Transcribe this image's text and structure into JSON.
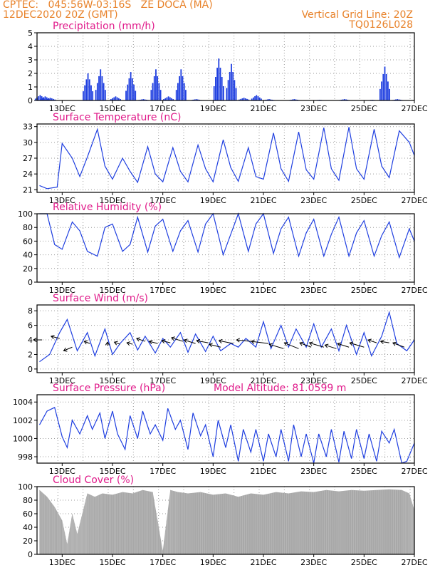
{
  "header": {
    "line1": "CPTEC:   045:56W-03:16S   ZE DOCA (MA)",
    "line2": "12DEC2020 20Z (GMT)",
    "right1": "Vertical Grid Line: 20Z",
    "right2": "TQ0126L028"
  },
  "colors": {
    "series": "#1f3fe0",
    "title": "#e01a8a",
    "header": "#e8822a",
    "cloud": "#a8a8a8",
    "grid": "#9a9a9a"
  },
  "chart_data": [
    {
      "type": "bar",
      "title": "Precipitation (mm/h)",
      "x_tick_labels": [
        "13DEC",
        "15DEC",
        "17DEC",
        "19DEC",
        "21DEC",
        "23DEC",
        "25DEC",
        "27DEC"
      ],
      "x_range_days": [
        12.83,
        27
      ],
      "ylim": [
        0,
        5
      ],
      "y_ticks": [
        0,
        1,
        2,
        3,
        4,
        5
      ],
      "x": [
        12.1,
        12.3,
        12.5,
        14.0,
        14.5,
        15.1,
        15.7,
        16.2,
        16.7,
        17.2,
        17.7,
        18.3,
        19.2,
        19.7,
        20.2,
        20.7,
        21.2,
        22.2,
        23.2,
        24.2,
        25.3,
        25.8,
        26.3
      ],
      "values": [
        0.4,
        0.3,
        0.2,
        2.0,
        2.3,
        0.3,
        2.1,
        0.1,
        2.3,
        0.3,
        2.3,
        0.1,
        3.1,
        2.7,
        0.2,
        0.4,
        0.1,
        0.1,
        0.05,
        0.1,
        0.05,
        2.5,
        0.1
      ]
    },
    {
      "type": "line",
      "title": "Surface Temperature (nC)",
      "x_tick_labels": [
        "13DEC",
        "15DEC",
        "17DEC",
        "19DEC",
        "21DEC",
        "23DEC",
        "25DEC",
        "27DEC"
      ],
      "ylim": [
        20.5,
        33.5
      ],
      "y_ticks": [
        21,
        24,
        27,
        30,
        33
      ],
      "x": [
        12.1,
        12.4,
        12.8,
        13.0,
        13.4,
        13.7,
        14.0,
        14.4,
        14.7,
        15.0,
        15.4,
        15.7,
        16.0,
        16.4,
        16.7,
        17.0,
        17.4,
        17.7,
        18.0,
        18.4,
        18.7,
        19.0,
        19.4,
        19.7,
        20.0,
        20.4,
        20.7,
        21.0,
        21.4,
        21.7,
        22.0,
        22.4,
        22.7,
        23.0,
        23.4,
        23.7,
        24.0,
        24.4,
        24.7,
        25.0,
        25.4,
        25.7,
        26.0,
        26.4,
        26.8,
        27.0
      ],
      "values": [
        21.8,
        21.2,
        21.5,
        29.8,
        27.0,
        23.5,
        27.2,
        32.5,
        25.5,
        23.0,
        27.0,
        24.5,
        22.4,
        29.2,
        24.0,
        22.5,
        29.0,
        24.5,
        22.5,
        29.5,
        25.0,
        22.5,
        30.5,
        25.2,
        22.6,
        29.0,
        23.5,
        23.0,
        31.8,
        25.0,
        22.6,
        32.0,
        24.8,
        23.0,
        32.8,
        25.0,
        22.8,
        32.9,
        25.0,
        23.0,
        32.5,
        25.5,
        23.3,
        32.2,
        30.0,
        27.5
      ]
    },
    {
      "type": "line",
      "title": "Relative Humidity (%)",
      "x_tick_labels": [
        "13DEC",
        "15DEC",
        "17DEC",
        "19DEC",
        "21DEC",
        "23DEC",
        "25DEC",
        "27DEC"
      ],
      "ylim": [
        0,
        100
      ],
      "y_ticks": [
        0,
        20,
        40,
        60,
        80,
        100
      ],
      "x": [
        12.1,
        12.4,
        12.7,
        13.0,
        13.4,
        13.7,
        14.0,
        14.4,
        14.7,
        15.0,
        15.4,
        15.7,
        16.0,
        16.4,
        16.7,
        17.0,
        17.4,
        17.7,
        18.0,
        18.4,
        18.7,
        19.0,
        19.4,
        19.7,
        20.0,
        20.4,
        20.7,
        21.0,
        21.4,
        21.7,
        22.0,
        22.4,
        22.7,
        23.0,
        23.4,
        23.7,
        24.0,
        24.4,
        24.7,
        25.0,
        25.4,
        25.7,
        26.0,
        26.4,
        26.8,
        27.0
      ],
      "values": [
        100,
        100,
        55,
        48,
        88,
        75,
        45,
        38,
        80,
        85,
        45,
        55,
        95,
        44,
        82,
        92,
        45,
        75,
        90,
        44,
        85,
        100,
        40,
        70,
        100,
        45,
        85,
        100,
        42,
        78,
        95,
        38,
        72,
        92,
        38,
        70,
        95,
        38,
        72,
        90,
        38,
        68,
        88,
        36,
        78,
        60
      ]
    },
    {
      "type": "line",
      "title": "Surface Wind (m/s)",
      "x_tick_labels": [
        "13DEC",
        "15DEC",
        "17DEC",
        "19DEC",
        "21DEC",
        "23DEC",
        "25DEC",
        "27DEC"
      ],
      "ylim": [
        -0.5,
        8.8
      ],
      "y_ticks": [
        0,
        2,
        4,
        6,
        8
      ],
      "x": [
        12.1,
        12.5,
        12.9,
        13.2,
        13.6,
        14.0,
        14.3,
        14.7,
        15.0,
        15.3,
        15.7,
        16.0,
        16.3,
        16.7,
        17.0,
        17.3,
        17.7,
        18.0,
        18.3,
        18.7,
        19.0,
        19.3,
        19.7,
        20.0,
        20.3,
        20.7,
        21.0,
        21.3,
        21.7,
        22.0,
        22.3,
        22.7,
        23.0,
        23.3,
        23.7,
        24.0,
        24.3,
        24.7,
        25.0,
        25.3,
        25.7,
        26.0,
        26.3,
        26.7,
        27.0
      ],
      "values": [
        1.0,
        2.0,
        5.0,
        6.8,
        2.5,
        5.0,
        1.8,
        5.5,
        2.0,
        3.5,
        5.0,
        2.6,
        4.5,
        2.2,
        4.2,
        3.0,
        5.0,
        2.3,
        4.8,
        2.4,
        4.5,
        2.5,
        3.5,
        3.0,
        4.2,
        3.0,
        6.5,
        2.8,
        6.0,
        3.0,
        5.5,
        3.0,
        6.2,
        3.0,
        5.5,
        2.5,
        6.0,
        2.0,
        5.0,
        1.8,
        4.5,
        7.8,
        3.5,
        2.5,
        4.0
      ],
      "wind_vectors": [
        {
          "x": 12.2,
          "y": 4.0,
          "dx": -0.3,
          "dy": 0.0
        },
        {
          "x": 12.9,
          "y": 4.2,
          "dx": -0.3,
          "dy": 0.3
        },
        {
          "x": 13.4,
          "y": 3.0,
          "dx": -0.3,
          "dy": -0.5
        },
        {
          "x": 14.1,
          "y": 3.5,
          "dx": -0.2,
          "dy": 0.3
        },
        {
          "x": 14.8,
          "y": 3.2,
          "dx": 0.0,
          "dy": 0.5
        },
        {
          "x": 15.3,
          "y": 3.4,
          "dx": -0.2,
          "dy": 0.3
        },
        {
          "x": 15.8,
          "y": 3.4,
          "dx": -0.2,
          "dy": 0.2
        },
        {
          "x": 16.3,
          "y": 3.8,
          "dx": -0.3,
          "dy": 0.4
        },
        {
          "x": 16.8,
          "y": 3.5,
          "dx": -0.3,
          "dy": 0.3
        },
        {
          "x": 17.3,
          "y": 3.6,
          "dx": -0.3,
          "dy": 0.3
        },
        {
          "x": 17.8,
          "y": 3.8,
          "dx": -0.4,
          "dy": 0.5
        },
        {
          "x": 18.3,
          "y": 3.5,
          "dx": -0.4,
          "dy": 0.5
        },
        {
          "x": 18.8,
          "y": 3.6,
          "dx": -0.4,
          "dy": 0.3
        },
        {
          "x": 19.3,
          "y": 3.0,
          "dx": -0.4,
          "dy": 0.4
        },
        {
          "x": 19.8,
          "y": 3.5,
          "dx": -0.5,
          "dy": 0.4
        },
        {
          "x": 20.5,
          "y": 3.8,
          "dx": -0.5,
          "dy": 0.2
        },
        {
          "x": 21.2,
          "y": 3.5,
          "dx": -0.6,
          "dy": 0.3
        },
        {
          "x": 21.8,
          "y": 2.8,
          "dx": -0.5,
          "dy": 0.6
        },
        {
          "x": 22.4,
          "y": 2.8,
          "dx": -0.5,
          "dy": 0.8
        },
        {
          "x": 22.9,
          "y": 3.0,
          "dx": -0.4,
          "dy": 0.6
        },
        {
          "x": 23.4,
          "y": 3.0,
          "dx": -0.5,
          "dy": 0.6
        },
        {
          "x": 23.9,
          "y": 2.8,
          "dx": -0.4,
          "dy": 0.5
        },
        {
          "x": 24.4,
          "y": 3.0,
          "dx": -0.4,
          "dy": 0.5
        },
        {
          "x": 25.0,
          "y": 3.0,
          "dx": -0.5,
          "dy": 0.6
        },
        {
          "x": 25.5,
          "y": 3.6,
          "dx": -0.3,
          "dy": 0.4
        },
        {
          "x": 26.0,
          "y": 3.6,
          "dx": -0.3,
          "dy": 0.2
        },
        {
          "x": 26.6,
          "y": 3.0,
          "dx": -0.4,
          "dy": 0.6
        }
      ]
    },
    {
      "type": "line",
      "title": "Surface Pressure (hPa)",
      "annotation": "Model Altitude: 81.0599 m",
      "x_tick_labels": [
        "13DEC",
        "15DEC",
        "17DEC",
        "19DEC",
        "21DEC",
        "23DEC",
        "25DEC",
        "27DEC"
      ],
      "ylim": [
        997.3,
        1004.8
      ],
      "y_ticks": [
        998,
        1000,
        1002,
        1004
      ],
      "x": [
        12.1,
        12.4,
        12.7,
        13.0,
        13.2,
        13.4,
        13.7,
        14.0,
        14.2,
        14.5,
        14.7,
        15.0,
        15.2,
        15.5,
        15.7,
        16.0,
        16.2,
        16.5,
        16.7,
        17.0,
        17.2,
        17.5,
        17.7,
        18.0,
        18.2,
        18.5,
        18.7,
        19.0,
        19.2,
        19.5,
        19.7,
        20.0,
        20.2,
        20.5,
        20.7,
        21.0,
        21.2,
        21.5,
        21.7,
        22.0,
        22.2,
        22.5,
        22.7,
        23.0,
        23.2,
        23.5,
        23.7,
        24.0,
        24.2,
        24.5,
        24.7,
        25.0,
        25.2,
        25.5,
        25.7,
        26.0,
        26.2,
        26.5,
        26.7,
        27.0
      ],
      "values": [
        1001.5,
        1003.0,
        1003.4,
        1000.2,
        999.0,
        1002.0,
        1000.5,
        1002.5,
        1001.0,
        1002.8,
        1000.0,
        1003.0,
        1000.5,
        998.8,
        1002.5,
        1000.0,
        1003.0,
        1000.5,
        1001.5,
        999.8,
        1003.3,
        1001.0,
        1002.0,
        998.8,
        1002.8,
        1000.3,
        1001.5,
        998.0,
        1002.0,
        999.0,
        1001.5,
        997.5,
        1001.0,
        998.5,
        1001.0,
        997.5,
        1000.5,
        998.0,
        1001.0,
        997.5,
        1001.5,
        998.0,
        1000.5,
        997.3,
        1000.5,
        998.0,
        1001.0,
        997.4,
        1000.8,
        997.8,
        1001.0,
        997.8,
        1000.5,
        997.5,
        1000.8,
        999.5,
        1001.0,
        997.3,
        997.5,
        999.5
      ]
    },
    {
      "type": "area",
      "title": "Cloud Cover (%)",
      "x_tick_labels": [
        "13DEC",
        "15DEC",
        "17DEC",
        "19DEC",
        "21DEC",
        "23DEC",
        "25DEC",
        "27DEC"
      ],
      "ylim": [
        0,
        100
      ],
      "y_ticks": [
        0,
        20,
        40,
        60,
        80,
        100
      ],
      "x": [
        12.1,
        12.4,
        12.7,
        13.0,
        13.2,
        13.4,
        13.6,
        13.8,
        14.0,
        14.3,
        14.6,
        15.0,
        15.4,
        15.8,
        16.2,
        16.6,
        17.0,
        17.3,
        17.6,
        18.0,
        18.5,
        19.0,
        19.5,
        20.0,
        20.5,
        21.0,
        21.5,
        22.0,
        22.5,
        23.0,
        23.5,
        24.0,
        24.5,
        25.0,
        25.5,
        26.0,
        26.5,
        26.8,
        27.0
      ],
      "values": [
        95,
        85,
        70,
        50,
        15,
        60,
        30,
        60,
        90,
        85,
        90,
        88,
        92,
        90,
        95,
        92,
        5,
        95,
        92,
        90,
        92,
        88,
        90,
        85,
        90,
        88,
        92,
        90,
        93,
        92,
        95,
        93,
        95,
        94,
        95,
        96,
        95,
        90,
        65
      ]
    }
  ]
}
